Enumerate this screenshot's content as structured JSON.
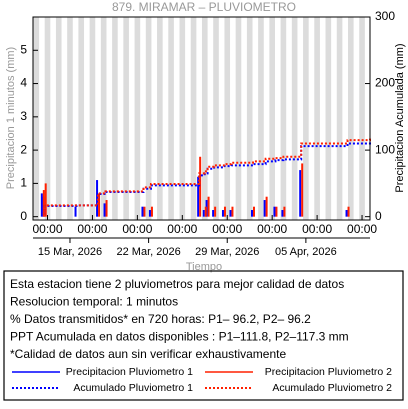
{
  "chart_data": {
    "type": "bar",
    "title": "879. MIRAMAR – PLUVIOMETRO",
    "ylabel": "Precipitacion 1 minutos (mm)",
    "y2label": "Precipitacion Acumulada (mm)",
    "xlabel": "Tiempo",
    "xlim": [
      "2026-03-11 17:00",
      "2026-04-10 17:00"
    ],
    "ylim": [
      -0.1,
      6
    ],
    "yticks": [
      0,
      1,
      2,
      3,
      4,
      5
    ],
    "y2lim": [
      -5,
      300
    ],
    "y2ticks": [
      0,
      100,
      200,
      300
    ],
    "xticks": [
      {
        "value": "2026-03-13 00:00",
        "label": "00:00"
      },
      {
        "value": "2026-03-17 00:00",
        "label": "00:00"
      },
      {
        "value": "2026-03-21 00:00",
        "label": "00:00"
      },
      {
        "value": "2026-03-25 00:00",
        "label": "00:00"
      },
      {
        "value": "2026-03-29 00:00",
        "label": "00:00"
      },
      {
        "value": "2026-04-02 00:00",
        "label": "00:00"
      },
      {
        "value": "2026-04-06 00:00",
        "label": "00:00"
      },
      {
        "value": "2026-04-10 00:00",
        "label": "00:00"
      }
    ],
    "xticks_dates": [
      {
        "value": "2026-03-15 00:00",
        "label": "15 Mar, 2026"
      },
      {
        "value": "2026-03-22 00:00",
        "label": "22 Mar, 2026"
      },
      {
        "value": "2026-03-29 00:00",
        "label": "29 Mar, 2026"
      },
      {
        "value": "2026-04-05 00:00",
        "label": "05 Apr, 2026"
      }
    ],
    "x": [
      "2026-03-12 14:00",
      "2026-03-12 18:00",
      "2026-03-15 14:00",
      "2026-03-17 12:00",
      "2026-03-18 04:00",
      "2026-03-21 13:00",
      "2026-03-22 05:00",
      "2026-03-26 12:00",
      "2026-03-27 00:00",
      "2026-03-27 06:00",
      "2026-03-27 20:00",
      "2026-03-28 17:00",
      "2026-03-29 09:00",
      "2026-03-31 07:00",
      "2026-04-01 10:00",
      "2026-04-02 07:00",
      "2026-04-03 00:00",
      "2026-04-04 14:00",
      "2026-04-08 17:00",
      "2026-04-10 17:00"
    ],
    "series": [
      {
        "name": "Precipitacion Pluviometro 1",
        "color": "#0000ff",
        "style": "bar",
        "values": [
          0.7,
          0.6,
          0.3,
          1.1,
          0.4,
          0.3,
          0.2,
          1.2,
          0.2,
          0.5,
          0.2,
          0.2,
          0.2,
          0.2,
          0.5,
          0.3,
          0.2,
          1.4,
          0.2,
          0
        ]
      },
      {
        "name": "Precipitacion Pluviometro 2",
        "color": "#ff2000",
        "style": "bar",
        "values": [
          0.8,
          1.0,
          0,
          0.7,
          0.5,
          0.3,
          0.3,
          1.8,
          0.3,
          0.6,
          0.3,
          0.3,
          0.3,
          0.3,
          0.6,
          0.3,
          0.3,
          1.6,
          0.3,
          0
        ]
      },
      {
        "name": "Acumulado Pluviometro 1",
        "color": "#0000ff",
        "style": "dotted",
        "axis": "y2",
        "values": [
          5,
          16,
          17,
          34,
          37,
          42,
          47,
          62,
          65,
          72,
          74,
          76,
          77,
          79,
          83,
          85,
          86,
          106,
          110,
          111.8
        ]
      },
      {
        "name": "Acumulado Pluviometro 2",
        "color": "#ff2000",
        "style": "dotted",
        "axis": "y2",
        "values": [
          5,
          17,
          17,
          35,
          38,
          44,
          49,
          65,
          68,
          75,
          77,
          79,
          81,
          83,
          87,
          88,
          90,
          110,
          115,
          117.3
        ]
      }
    ],
    "info_lines": [
      "Esta estacion tiene 2 pluviometros para mejor calidad de datos",
      "Resolucion temporal: 1 minutos",
      "% Datos transmitidos* en 720 horas: P1– 96.2, P2– 96.2",
      "PPT Acumulada en datos disponibles : P1–111.8, P2–117.3 mm",
      "*Calidad de datos aun sin verificar exhaustivamente"
    ]
  }
}
